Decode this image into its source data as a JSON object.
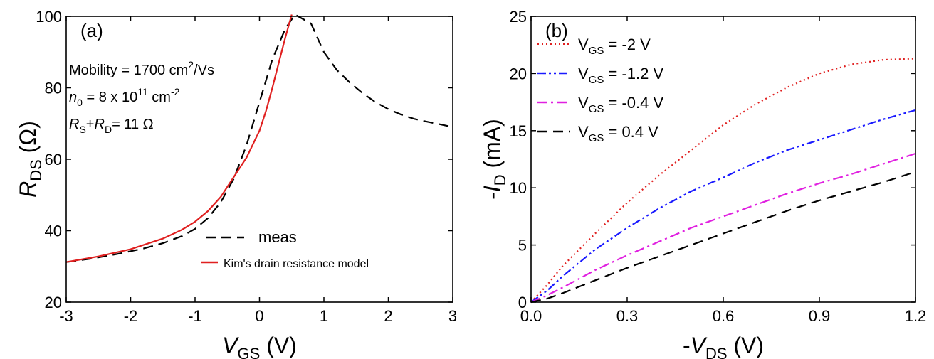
{
  "chart_data": [
    {
      "type": "line",
      "panel_label": "(a)",
      "xlabel": {
        "main": "V",
        "sub": "GS",
        "unit": " (V)"
      },
      "ylabel": {
        "main": "R",
        "sub": "DS",
        "unit": " (Ω)"
      },
      "xlim": [
        -3,
        3
      ],
      "ylim": [
        20,
        100
      ],
      "xticks": [
        -3,
        -2,
        -1,
        0,
        1,
        2,
        3
      ],
      "yticks": [
        20,
        40,
        60,
        80,
        100
      ],
      "annotations": [
        {
          "pre": "Mobility = 1700 cm",
          "sup": "2",
          "post": "/Vs"
        },
        {
          "ital": "n",
          "sub": "0",
          "mid": " = 8 x 10",
          "sup": "11",
          "post": " cm",
          "sup2": "-2"
        },
        {
          "ital": "R",
          "sub": "S",
          "mid": "+",
          "ital2": "R",
          "sub2": "D",
          "post": "= 11 Ω"
        }
      ],
      "legend_position": "bottom-right",
      "series": [
        {
          "name": "meas",
          "color": "#000000",
          "dash": "dashed",
          "x": [
            -3,
            -2.6,
            -2.2,
            -1.8,
            -1.5,
            -1.2,
            -1.0,
            -0.8,
            -0.6,
            -0.4,
            -0.2,
            0.0,
            0.2,
            0.4,
            0.55,
            0.6,
            0.8,
            1.0,
            1.2,
            1.4,
            1.6,
            1.8,
            2.0,
            2.2,
            2.4,
            2.6,
            2.8,
            3.0
          ],
          "y": [
            31.2,
            32.2,
            33.5,
            35.0,
            36.5,
            38.5,
            40.5,
            43.5,
            48.0,
            54.5,
            64.0,
            76.0,
            88.0,
            96.5,
            100.5,
            100.0,
            98.0,
            90.0,
            85.0,
            81.5,
            78.5,
            76.0,
            74.0,
            72.5,
            71.3,
            70.5,
            69.8,
            69.0
          ]
        },
        {
          "name": "Kim's drain resistance model",
          "color": "#e02020",
          "dash": "solid",
          "x": [
            -3,
            -2.5,
            -2.0,
            -1.5,
            -1.2,
            -1.0,
            -0.8,
            -0.6,
            -0.4,
            -0.2,
            0.0,
            0.1,
            0.2,
            0.3,
            0.4,
            0.5
          ],
          "y": [
            31.2,
            32.8,
            34.8,
            37.8,
            40.3,
            42.5,
            45.5,
            49.5,
            55.0,
            60.5,
            68.0,
            73.5,
            80.0,
            87.0,
            94.0,
            100.5
          ]
        }
      ]
    },
    {
      "type": "line",
      "panel_label": "(b)",
      "xlabel": {
        "pre": "-",
        "main": "V",
        "sub": "DS",
        "unit": " (V)"
      },
      "ylabel": {
        "pre": "-",
        "main": "I",
        "sub": "D",
        "unit": " (mA)"
      },
      "xlim": [
        0,
        1.2
      ],
      "ylim": [
        0,
        25
      ],
      "xticks": [
        "0.0",
        "0.3",
        "0.6",
        "0.9",
        "1.2"
      ],
      "yticks": [
        0,
        5,
        10,
        15,
        20,
        25
      ],
      "legend_position": "top-left",
      "series": [
        {
          "name": {
            "main": "V",
            "sub": "GS",
            "post": " = -2 V"
          },
          "color": "#e02020",
          "dash": "dotted",
          "x": [
            0,
            0.05,
            0.1,
            0.2,
            0.3,
            0.4,
            0.5,
            0.6,
            0.7,
            0.8,
            0.9,
            1.0,
            1.1,
            1.2
          ],
          "y": [
            0,
            1.5,
            3.2,
            6.0,
            8.7,
            11.1,
            13.3,
            15.5,
            17.3,
            18.8,
            20.0,
            20.8,
            21.2,
            21.3
          ]
        },
        {
          "name": {
            "main": "V",
            "sub": "GS",
            "post": " = -1.2 V"
          },
          "color": "#1a1aff",
          "dash": "dash-dot-dot",
          "x": [
            0,
            0.05,
            0.1,
            0.2,
            0.3,
            0.4,
            0.5,
            0.6,
            0.7,
            0.8,
            0.9,
            1.0,
            1.1,
            1.2
          ],
          "y": [
            0,
            1.0,
            2.3,
            4.6,
            6.5,
            8.2,
            9.7,
            10.9,
            12.2,
            13.3,
            14.2,
            15.1,
            16.0,
            16.8
          ]
        },
        {
          "name": {
            "main": "V",
            "sub": "GS",
            "post": " = -0.4 V"
          },
          "color": "#e020e0",
          "dash": "dash-dot",
          "x": [
            0,
            0.05,
            0.1,
            0.2,
            0.3,
            0.4,
            0.5,
            0.6,
            0.7,
            0.8,
            0.9,
            1.0,
            1.1,
            1.2
          ],
          "y": [
            0,
            0.6,
            1.3,
            2.8,
            4.1,
            5.3,
            6.5,
            7.5,
            8.5,
            9.5,
            10.4,
            11.2,
            12.1,
            13.0
          ]
        },
        {
          "name": {
            "main": "V",
            "sub": "GS",
            "post": " = 0.4 V"
          },
          "color": "#000000",
          "dash": "dashed",
          "x": [
            0,
            0.05,
            0.1,
            0.2,
            0.3,
            0.4,
            0.5,
            0.6,
            0.7,
            0.8,
            0.9,
            1.0,
            1.1,
            1.2
          ],
          "y": [
            0,
            0.3,
            0.8,
            1.9,
            3.0,
            4.0,
            5.0,
            6.0,
            7.0,
            8.0,
            8.9,
            9.7,
            10.5,
            11.4
          ]
        }
      ]
    }
  ]
}
